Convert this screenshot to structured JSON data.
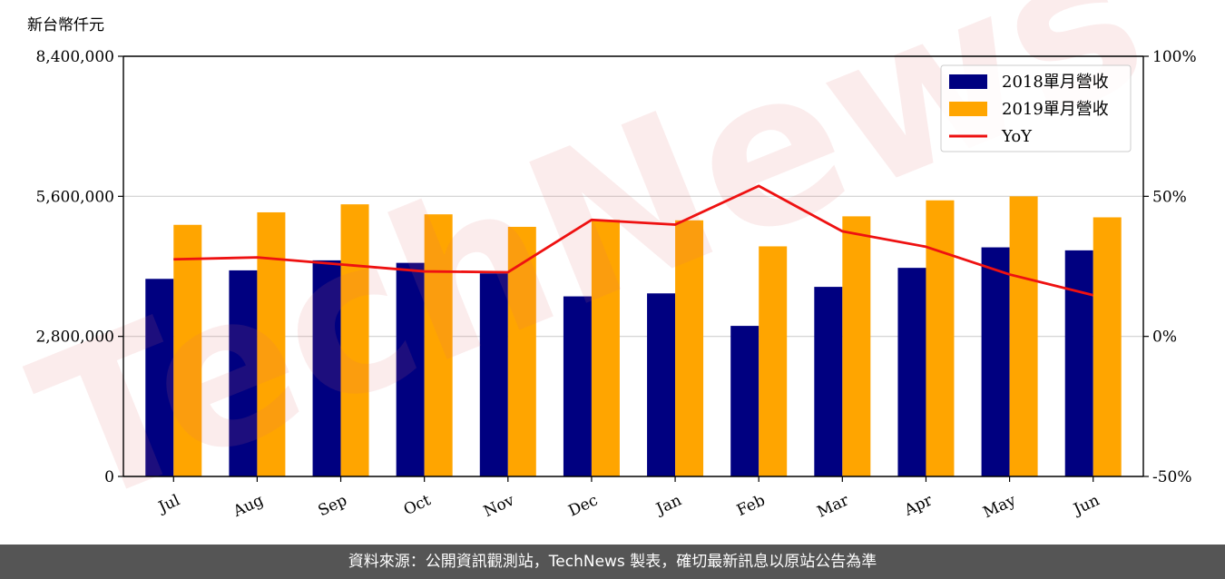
{
  "chart_data": {
    "type": "bar",
    "categories": [
      "Jul",
      "Aug",
      "Sep",
      "Oct",
      "Nov",
      "Dec",
      "Jan",
      "Feb",
      "Mar",
      "Apr",
      "May",
      "Jun"
    ],
    "series": [
      {
        "name": "2018單月營收",
        "type": "bar",
        "axis": "left",
        "color": "#000080",
        "values": [
          3950000,
          4120000,
          4320000,
          4270000,
          4060000,
          3600000,
          3660000,
          3010000,
          3790000,
          4170000,
          4580000,
          4520000
        ]
      },
      {
        "name": "2019單月營收",
        "type": "bar",
        "axis": "left",
        "color": "#FFA500",
        "values": [
          5030000,
          5280000,
          5440000,
          5240000,
          4990000,
          5130000,
          5120000,
          4600000,
          5200000,
          5520000,
          5600000,
          5180000
        ]
      },
      {
        "name": "YoY",
        "type": "line",
        "axis": "right",
        "color": "#EE1111",
        "values": [
          27.5,
          28.2,
          25.7,
          23.2,
          22.9,
          41.6,
          39.9,
          53.7,
          37.5,
          32.0,
          22.1,
          14.7
        ]
      }
    ],
    "ylabel": "新台幣仟元",
    "ylim": [
      0,
      8400000
    ],
    "yticks": [
      "0",
      "2,800,000",
      "5,600,000",
      "8,400,000"
    ],
    "y2lim": [
      -50,
      100
    ],
    "y2ticks": [
      "-50%",
      "0%",
      "50%",
      "100%"
    ],
    "grid": "horizontal",
    "legend_position": "top-right"
  },
  "watermark": "TechNews",
  "footer": {
    "source": "資料來源：公開資訊觀測站，TechNews 製表，確切最新訊息以原站公告為準"
  }
}
